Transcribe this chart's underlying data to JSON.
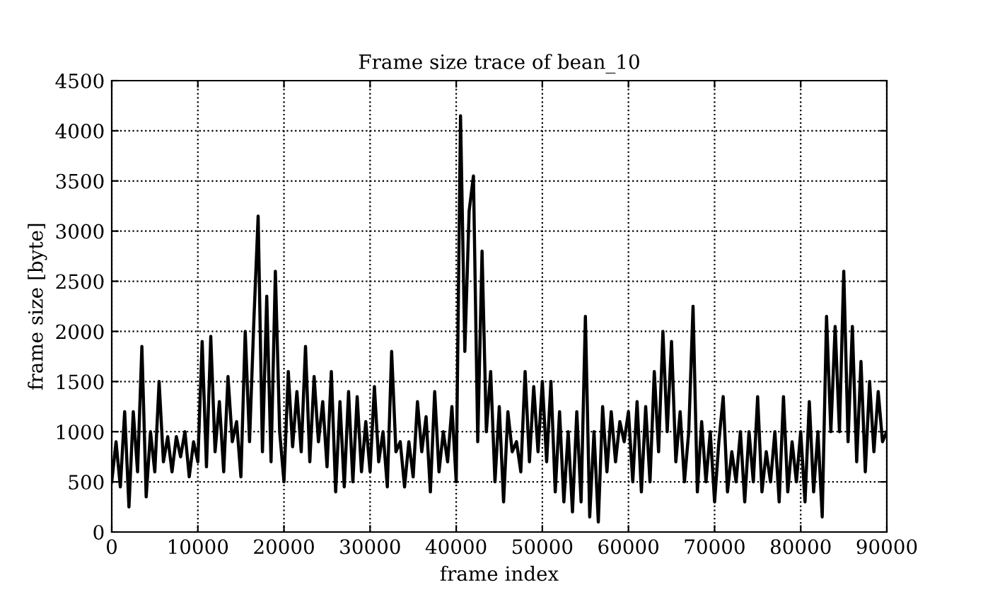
{
  "chart_data": {
    "type": "line",
    "title": "Frame size trace of bean_10",
    "xlabel": "frame index",
    "ylabel": "frame size [byte]",
    "xlim": [
      0,
      90000
    ],
    "ylim": [
      0,
      4500
    ],
    "xticks": [
      0,
      10000,
      20000,
      30000,
      40000,
      50000,
      60000,
      70000,
      80000,
      90000
    ],
    "yticks": [
      0,
      500,
      1000,
      1500,
      2000,
      2500,
      3000,
      3500,
      4000,
      4500
    ],
    "grid": true,
    "line_style": "solid",
    "marker": "none",
    "series": [
      {
        "color": "#000000",
        "x": [
          0,
          500,
          1000,
          1500,
          2000,
          2500,
          3000,
          3500,
          4000,
          4500,
          5000,
          5500,
          6000,
          6500,
          7000,
          7500,
          8000,
          8500,
          9000,
          9500,
          10000,
          10500,
          11000,
          11500,
          12000,
          12500,
          13000,
          13500,
          14000,
          14500,
          15000,
          15500,
          16000,
          16500,
          17000,
          17500,
          18000,
          18500,
          19000,
          19500,
          20000,
          20500,
          21000,
          21500,
          22000,
          22500,
          23000,
          23500,
          24000,
          24500,
          25000,
          25500,
          26000,
          26500,
          27000,
          27500,
          28000,
          28500,
          29000,
          29500,
          30000,
          30500,
          31000,
          31500,
          32000,
          32500,
          33000,
          33500,
          34000,
          34500,
          35000,
          35500,
          36000,
          36500,
          37000,
          37500,
          38000,
          38500,
          39000,
          39500,
          40000,
          40500,
          41000,
          41500,
          42000,
          42500,
          43000,
          43500,
          44000,
          44500,
          45000,
          45500,
          46000,
          46500,
          47000,
          47500,
          48000,
          48500,
          49000,
          49500,
          50000,
          50500,
          51000,
          51500,
          52000,
          52500,
          53000,
          53500,
          54000,
          54500,
          55000,
          55500,
          56000,
          56500,
          57000,
          57500,
          58000,
          58500,
          59000,
          59500,
          60000,
          60500,
          61000,
          61500,
          62000,
          62500,
          63000,
          63500,
          64000,
          64500,
          65000,
          65500,
          66000,
          66500,
          67000,
          67500,
          68000,
          68500,
          69000,
          69500,
          70000,
          70500,
          71000,
          71500,
          72000,
          72500,
          73000,
          73500,
          74000,
          74500,
          75000,
          75500,
          76000,
          76500,
          77000,
          77500,
          78000,
          78500,
          79000,
          79500,
          80000,
          80500,
          81000,
          81500,
          82000,
          82500,
          83000,
          83500,
          84000,
          84500,
          85000,
          85500,
          86000,
          86500,
          87000,
          87500,
          88000,
          88500,
          89000,
          89500,
          90000
        ],
        "values": [
          500,
          900,
          450,
          1200,
          250,
          1200,
          600,
          1850,
          350,
          1000,
          600,
          1500,
          700,
          950,
          600,
          950,
          750,
          1000,
          550,
          900,
          700,
          1900,
          650,
          1950,
          800,
          1300,
          600,
          1550,
          900,
          1100,
          550,
          2000,
          900,
          2100,
          3150,
          800,
          2350,
          700,
          2600,
          1000,
          500,
          1600,
          850,
          1400,
          800,
          1850,
          700,
          1550,
          900,
          1300,
          650,
          1600,
          400,
          1300,
          450,
          1400,
          500,
          1350,
          600,
          1100,
          600,
          1450,
          700,
          1000,
          450,
          1800,
          800,
          900,
          450,
          900,
          550,
          1300,
          800,
          1150,
          400,
          1400,
          600,
          1000,
          700,
          1250,
          500,
          4150,
          1800,
          3200,
          3550,
          900,
          2800,
          1000,
          1600,
          500,
          1250,
          300,
          1200,
          800,
          900,
          600,
          1600,
          700,
          1450,
          800,
          1500,
          700,
          1500,
          400,
          1200,
          300,
          1000,
          200,
          1200,
          300,
          2150,
          150,
          1000,
          100,
          1250,
          600,
          1200,
          700,
          1100,
          900,
          1200,
          500,
          1300,
          400,
          1250,
          500,
          1600,
          800,
          2000,
          1000,
          1900,
          700,
          1200,
          500,
          1000,
          2250,
          400,
          1100,
          500,
          1000,
          300,
          900,
          1350,
          400,
          800,
          500,
          1000,
          300,
          1000,
          500,
          1350,
          400,
          800,
          500,
          1000,
          300,
          1350,
          400,
          900,
          500,
          1000,
          300,
          1300,
          400,
          1000,
          150,
          2150,
          1000,
          2050,
          1000,
          2600,
          900,
          2050,
          700,
          1700,
          600,
          1500,
          800,
          1400,
          900,
          1000
        ]
      }
    ]
  }
}
